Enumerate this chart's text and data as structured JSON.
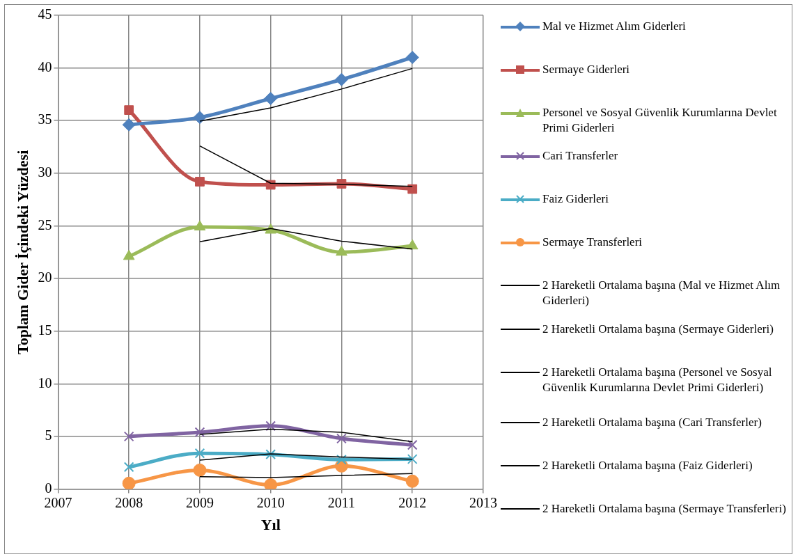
{
  "chart_data": {
    "type": "line",
    "xlabel": "Yıl",
    "ylabel": "Toplam Gider İçindeki Yüzdesi",
    "xlim": [
      2007,
      2013
    ],
    "xticks": [
      2007,
      2008,
      2009,
      2010,
      2011,
      2012,
      2013
    ],
    "ylim": [
      0,
      45
    ],
    "yticks": [
      0,
      5,
      10,
      15,
      20,
      25,
      30,
      35,
      40,
      45
    ],
    "grid": true,
    "legend": "right",
    "x": [
      2008,
      2009,
      2010,
      2011,
      2012
    ],
    "series": [
      {
        "name": "Mal ve Hizmet Alım Giderleri",
        "color": "#4f81bd",
        "marker": "diamond",
        "values": [
          34.6,
          35.3,
          37.1,
          38.9,
          41.0
        ]
      },
      {
        "name": "Sermaye Giderleri",
        "color": "#c0504d",
        "marker": "square",
        "values": [
          36.0,
          29.2,
          28.9,
          29.0,
          28.5
        ]
      },
      {
        "name": "Personel ve Sosyal Güvenlik Kurumlarına Devlet Primi Giderleri",
        "color": "#9bbb59",
        "marker": "triangle",
        "values": [
          22.1,
          24.9,
          24.6,
          22.5,
          23.1
        ]
      },
      {
        "name": "Cari Transferler",
        "color": "#8064a2",
        "marker": "cross",
        "values": [
          5.0,
          5.4,
          6.0,
          4.8,
          4.2
        ]
      },
      {
        "name": "Faiz  Giderleri",
        "color": "#4bacc6",
        "marker": "cross",
        "values": [
          2.1,
          3.4,
          3.3,
          2.8,
          2.85
        ]
      },
      {
        "name": "Sermaye Transferleri",
        "color": "#f79646",
        "marker": "circle",
        "values": [
          0.55,
          1.8,
          0.4,
          2.2,
          0.75
        ]
      },
      {
        "name": "2 Hareketli Ortalama başına (Mal ve Hizmet Alım Giderleri)",
        "color": "#000000",
        "marker": "none",
        "x": [
          2009,
          2010,
          2011,
          2012
        ],
        "values": [
          34.95,
          36.2,
          38.0,
          39.95
        ]
      },
      {
        "name": "2 Hareketli Ortalama başına (Sermaye Giderleri)",
        "color": "#000000",
        "marker": "none",
        "x": [
          2009,
          2010,
          2011,
          2012
        ],
        "values": [
          32.6,
          29.05,
          28.95,
          28.75
        ]
      },
      {
        "name": "2 Hareketli Ortalama başına (Personel ve Sosyal Güvenlik Kurumlarına Devlet Primi Giderleri)",
        "color": "#000000",
        "marker": "none",
        "x": [
          2009,
          2010,
          2011,
          2012
        ],
        "values": [
          23.5,
          24.75,
          23.55,
          22.8
        ]
      },
      {
        "name": "2 Hareketli Ortalama başına (Cari Transferler)",
        "color": "#000000",
        "marker": "none",
        "x": [
          2009,
          2010,
          2011,
          2012
        ],
        "values": [
          5.2,
          5.7,
          5.4,
          4.5
        ]
      },
      {
        "name": "2 Hareketli Ortalama başına (Faiz Giderleri)",
        "color": "#000000",
        "marker": "none",
        "x": [
          2009,
          2010,
          2011,
          2012
        ],
        "values": [
          2.75,
          3.35,
          3.05,
          2.83
        ]
      },
      {
        "name": "2 Hareketli Ortalama başına (Sermaye Transferleri)",
        "color": "#000000",
        "marker": "none",
        "x": [
          2009,
          2010,
          2011,
          2012
        ],
        "values": [
          1.18,
          1.1,
          1.3,
          1.48
        ]
      }
    ]
  }
}
